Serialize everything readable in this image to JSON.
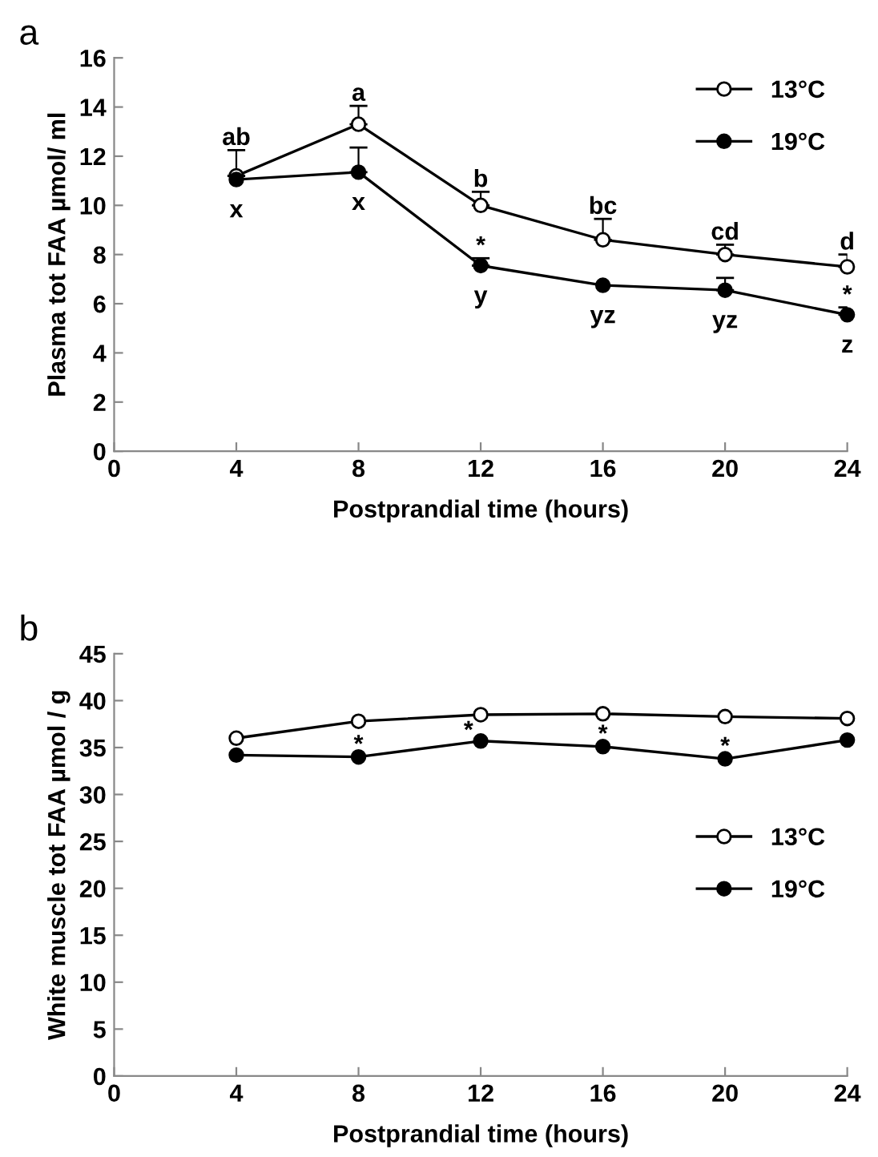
{
  "chart_data": [
    {
      "type": "line",
      "title": "a",
      "xlabel": "Postprandial time (hours)",
      "ylabel": "Plasma tot FAA µmol/ ml",
      "x": [
        4,
        8,
        12,
        16,
        20,
        24
      ],
      "xlim": [
        0,
        24
      ],
      "xticks": [
        0,
        4,
        8,
        12,
        16,
        20,
        24
      ],
      "ylim": [
        0,
        16
      ],
      "yticks": [
        0,
        2,
        4,
        6,
        8,
        10,
        12,
        14,
        16
      ],
      "grid": false,
      "legend": "top right",
      "marker": "circle",
      "line_style": "solid",
      "series": [
        {
          "name": "13°C",
          "color": "#ffffff",
          "values": [
            11.2,
            13.3,
            10.0,
            8.6,
            8.0,
            7.5
          ],
          "errors": [
            [
              11.2,
              12.25
            ],
            [
              13.3,
              14.05
            ],
            [
              10.0,
              10.55
            ],
            [
              8.6,
              9.45
            ],
            [
              8.0,
              8.4
            ],
            [
              7.5,
              8.0
            ]
          ]
        },
        {
          "name": "19°C",
          "color": "#000000",
          "values": [
            11.05,
            11.35,
            7.55,
            6.75,
            6.55,
            5.55
          ],
          "errors": [
            null,
            [
              11.35,
              12.35
            ],
            [
              7.55,
              7.85
            ],
            null,
            [
              6.55,
              7.05
            ],
            [
              5.55,
              5.85
            ]
          ]
        }
      ],
      "annotations": [
        {
          "text": "ab",
          "x": 4,
          "y": 12.25
        },
        {
          "text": "a",
          "x": 8,
          "y": 14.05
        },
        {
          "text": "b",
          "x": 12,
          "y": 10.55
        },
        {
          "text": "bc",
          "x": 16,
          "y": 9.45
        },
        {
          "text": "cd",
          "x": 20,
          "y": 8.4
        },
        {
          "text": "d",
          "x": 24,
          "y": 8.0
        },
        {
          "text": "x",
          "x": 4,
          "y": 11.05
        },
        {
          "text": "x",
          "x": 8,
          "y": 11.35
        },
        {
          "text": "*",
          "x": 12,
          "y": 7.85
        },
        {
          "text": "y",
          "x": 12,
          "y": 7.55
        },
        {
          "text": "yz",
          "x": 16,
          "y": 6.75
        },
        {
          "text": "yz",
          "x": 20,
          "y": 6.55
        },
        {
          "text": "*",
          "x": 24,
          "y": 5.85
        },
        {
          "text": "z",
          "x": 24,
          "y": 5.55
        }
      ]
    },
    {
      "type": "line",
      "title": "b",
      "xlabel": "Postprandial time (hours)",
      "ylabel": "White muscle tot FAA µmol / g",
      "x": [
        4,
        8,
        12,
        16,
        20,
        24
      ],
      "xlim": [
        0,
        24
      ],
      "xticks": [
        0,
        4,
        8,
        12,
        16,
        20,
        24
      ],
      "ylim": [
        0,
        45
      ],
      "yticks": [
        0,
        5,
        10,
        15,
        20,
        25,
        30,
        35,
        40,
        45
      ],
      "grid": false,
      "legend": "right",
      "marker": "circle",
      "line_style": "solid",
      "series": [
        {
          "name": "13°C",
          "color": "#ffffff",
          "values": [
            36.0,
            37.8,
            38.5,
            38.6,
            38.3,
            38.1
          ]
        },
        {
          "name": "19°C",
          "color": "#000000",
          "values": [
            34.2,
            34.0,
            35.7,
            35.1,
            33.8,
            35.8
          ]
        }
      ],
      "annotations": [
        {
          "text": "*",
          "x": 8,
          "y": 34.0
        },
        {
          "text": "*",
          "x": 11.6,
          "y": 35.5
        },
        {
          "text": "*",
          "x": 16,
          "y": 35.1
        },
        {
          "text": "*",
          "x": 20,
          "y": 33.8
        }
      ]
    }
  ]
}
